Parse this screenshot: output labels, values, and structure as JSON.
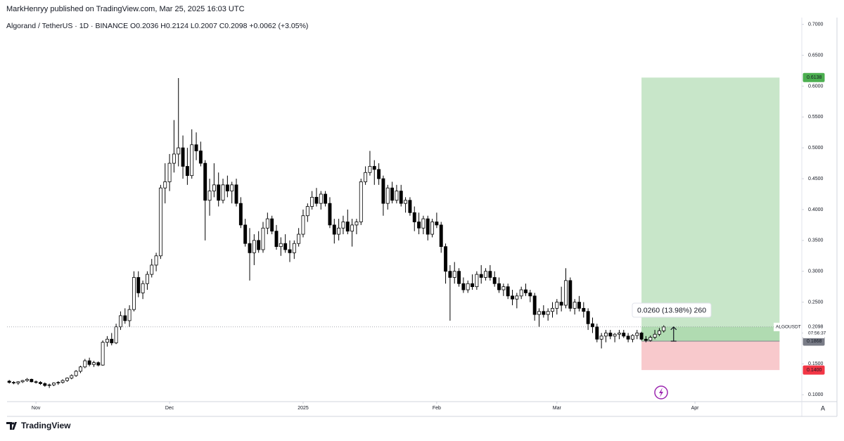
{
  "header": {
    "byline": "MarkHenryy published on TradingView.com, Mar 25, 2025 16:03 UTC"
  },
  "footer": {
    "brand": "TradingView",
    "axis_mode": "A"
  },
  "chart_data": {
    "type": "candlestick",
    "title": "Algorand / TetherUS · 1D · BINANCE  O0.2036  H0.2124  L0.2007  C0.2098  +0.0062 (+3.05%)",
    "symbol": "ALGOUSDT",
    "countdown": "07:56:37",
    "up_color": "#ffffff",
    "down_color": "#000000",
    "wick_color": "#000000",
    "xlim": [
      -0.5,
      178
    ],
    "xticks": [
      {
        "value": 6,
        "label": "Nov"
      },
      {
        "value": 36,
        "label": "Dec"
      },
      {
        "value": 66,
        "label": "2025"
      },
      {
        "value": 96,
        "label": "Feb"
      },
      {
        "value": 123,
        "label": "Mar"
      },
      {
        "value": 154,
        "label": "Apr"
      }
    ],
    "ylim": [
      0.09,
      0.711
    ],
    "yticks": [
      {
        "value": 0.1,
        "label": "0.1000"
      },
      {
        "value": 0.15,
        "label": "0.1500"
      },
      {
        "value": 0.2,
        "label": "0.2000"
      },
      {
        "value": 0.25,
        "label": "0.2500"
      },
      {
        "value": 0.3,
        "label": "0.3000"
      },
      {
        "value": 0.35,
        "label": "0.3500"
      },
      {
        "value": 0.4,
        "label": "0.4000"
      },
      {
        "value": 0.45,
        "label": "0.4500"
      },
      {
        "value": 0.5,
        "label": "0.5000"
      },
      {
        "value": 0.55,
        "label": "0.5500"
      },
      {
        "value": 0.6,
        "label": "0.6000"
      },
      {
        "value": 0.65,
        "label": "0.6500"
      },
      {
        "value": 0.7,
        "label": "0.7000"
      }
    ],
    "ohlc": [
      [
        0.122,
        0.124,
        0.118,
        0.12
      ],
      [
        0.12,
        0.122,
        0.117,
        0.119
      ],
      [
        0.119,
        0.122,
        0.116,
        0.121
      ],
      [
        0.121,
        0.124,
        0.119,
        0.123
      ],
      [
        0.123,
        0.127,
        0.121,
        0.125
      ],
      [
        0.125,
        0.126,
        0.12,
        0.121
      ],
      [
        0.121,
        0.123,
        0.118,
        0.12
      ],
      [
        0.12,
        0.122,
        0.116,
        0.118
      ],
      [
        0.118,
        0.12,
        0.113,
        0.115
      ],
      [
        0.115,
        0.118,
        0.111,
        0.116
      ],
      [
        0.116,
        0.12,
        0.114,
        0.119
      ],
      [
        0.119,
        0.122,
        0.116,
        0.12
      ],
      [
        0.12,
        0.125,
        0.118,
        0.123
      ],
      [
        0.123,
        0.128,
        0.121,
        0.127
      ],
      [
        0.127,
        0.133,
        0.125,
        0.131
      ],
      [
        0.131,
        0.14,
        0.129,
        0.138
      ],
      [
        0.138,
        0.147,
        0.135,
        0.145
      ],
      [
        0.145,
        0.158,
        0.143,
        0.155
      ],
      [
        0.155,
        0.16,
        0.146,
        0.149
      ],
      [
        0.149,
        0.155,
        0.145,
        0.152
      ],
      [
        0.152,
        0.154,
        0.146,
        0.148
      ],
      [
        0.148,
        0.188,
        0.147,
        0.185
      ],
      [
        0.185,
        0.195,
        0.178,
        0.19
      ],
      [
        0.19,
        0.2,
        0.18,
        0.184
      ],
      [
        0.184,
        0.215,
        0.182,
        0.21
      ],
      [
        0.21,
        0.235,
        0.205,
        0.228
      ],
      [
        0.228,
        0.24,
        0.215,
        0.22
      ],
      [
        0.22,
        0.245,
        0.21,
        0.238
      ],
      [
        0.238,
        0.3,
        0.235,
        0.29
      ],
      [
        0.29,
        0.3,
        0.258,
        0.265
      ],
      [
        0.265,
        0.285,
        0.255,
        0.28
      ],
      [
        0.28,
        0.3,
        0.27,
        0.295
      ],
      [
        0.295,
        0.32,
        0.29,
        0.31
      ],
      [
        0.31,
        0.33,
        0.3,
        0.325
      ],
      [
        0.325,
        0.44,
        0.32,
        0.435
      ],
      [
        0.435,
        0.475,
        0.41,
        0.445
      ],
      [
        0.445,
        0.49,
        0.43,
        0.475
      ],
      [
        0.475,
        0.545,
        0.46,
        0.49
      ],
      [
        0.49,
        0.613,
        0.47,
        0.5
      ],
      [
        0.5,
        0.52,
        0.45,
        0.47
      ],
      [
        0.47,
        0.5,
        0.44,
        0.455
      ],
      [
        0.455,
        0.53,
        0.45,
        0.505
      ],
      [
        0.505,
        0.525,
        0.48,
        0.495
      ],
      [
        0.495,
        0.51,
        0.47,
        0.475
      ],
      [
        0.475,
        0.48,
        0.35,
        0.415
      ],
      [
        0.415,
        0.45,
        0.39,
        0.43
      ],
      [
        0.43,
        0.475,
        0.42,
        0.44
      ],
      [
        0.44,
        0.46,
        0.405,
        0.415
      ],
      [
        0.415,
        0.45,
        0.41,
        0.44
      ],
      [
        0.44,
        0.455,
        0.42,
        0.43
      ],
      [
        0.43,
        0.445,
        0.41,
        0.44
      ],
      [
        0.44,
        0.45,
        0.405,
        0.41
      ],
      [
        0.41,
        0.42,
        0.37,
        0.375
      ],
      [
        0.375,
        0.385,
        0.34,
        0.345
      ],
      [
        0.345,
        0.37,
        0.285,
        0.33
      ],
      [
        0.33,
        0.36,
        0.31,
        0.35
      ],
      [
        0.35,
        0.365,
        0.33,
        0.335
      ],
      [
        0.335,
        0.38,
        0.33,
        0.37
      ],
      [
        0.37,
        0.395,
        0.36,
        0.385
      ],
      [
        0.385,
        0.39,
        0.36,
        0.365
      ],
      [
        0.365,
        0.375,
        0.335,
        0.34
      ],
      [
        0.34,
        0.355,
        0.325,
        0.345
      ],
      [
        0.345,
        0.36,
        0.33,
        0.335
      ],
      [
        0.335,
        0.35,
        0.315,
        0.33
      ],
      [
        0.33,
        0.35,
        0.32,
        0.345
      ],
      [
        0.345,
        0.37,
        0.34,
        0.36
      ],
      [
        0.36,
        0.4,
        0.355,
        0.39
      ],
      [
        0.39,
        0.41,
        0.38,
        0.405
      ],
      [
        0.405,
        0.43,
        0.4,
        0.42
      ],
      [
        0.42,
        0.435,
        0.405,
        0.41
      ],
      [
        0.41,
        0.43,
        0.4,
        0.425
      ],
      [
        0.425,
        0.43,
        0.405,
        0.41
      ],
      [
        0.41,
        0.42,
        0.37,
        0.375
      ],
      [
        0.375,
        0.385,
        0.345,
        0.36
      ],
      [
        0.36,
        0.385,
        0.35,
        0.37
      ],
      [
        0.37,
        0.39,
        0.36,
        0.38
      ],
      [
        0.38,
        0.4,
        0.36,
        0.365
      ],
      [
        0.365,
        0.385,
        0.34,
        0.375
      ],
      [
        0.375,
        0.385,
        0.36,
        0.38
      ],
      [
        0.38,
        0.45,
        0.375,
        0.445
      ],
      [
        0.445,
        0.47,
        0.44,
        0.46
      ],
      [
        0.46,
        0.495,
        0.455,
        0.47
      ],
      [
        0.47,
        0.48,
        0.44,
        0.465
      ],
      [
        0.465,
        0.475,
        0.44,
        0.45
      ],
      [
        0.45,
        0.455,
        0.39,
        0.41
      ],
      [
        0.41,
        0.44,
        0.4,
        0.435
      ],
      [
        0.435,
        0.445,
        0.41,
        0.415
      ],
      [
        0.415,
        0.44,
        0.41,
        0.43
      ],
      [
        0.43,
        0.44,
        0.405,
        0.41
      ],
      [
        0.41,
        0.42,
        0.395,
        0.415
      ],
      [
        0.415,
        0.42,
        0.39,
        0.395
      ],
      [
        0.395,
        0.405,
        0.365,
        0.38
      ],
      [
        0.38,
        0.395,
        0.36,
        0.37
      ],
      [
        0.37,
        0.39,
        0.36,
        0.385
      ],
      [
        0.385,
        0.39,
        0.35,
        0.36
      ],
      [
        0.36,
        0.385,
        0.355,
        0.38
      ],
      [
        0.38,
        0.395,
        0.37,
        0.375
      ],
      [
        0.375,
        0.38,
        0.33,
        0.34
      ],
      [
        0.34,
        0.345,
        0.28,
        0.3
      ],
      [
        0.3,
        0.31,
        0.22,
        0.29
      ],
      [
        0.29,
        0.315,
        0.28,
        0.3
      ],
      [
        0.3,
        0.305,
        0.275,
        0.28
      ],
      [
        0.28,
        0.29,
        0.265,
        0.27
      ],
      [
        0.27,
        0.285,
        0.265,
        0.28
      ],
      [
        0.28,
        0.295,
        0.27,
        0.275
      ],
      [
        0.275,
        0.3,
        0.27,
        0.295
      ],
      [
        0.295,
        0.31,
        0.28,
        0.29
      ],
      [
        0.29,
        0.305,
        0.285,
        0.3
      ],
      [
        0.3,
        0.31,
        0.285,
        0.29
      ],
      [
        0.29,
        0.3,
        0.275,
        0.28
      ],
      [
        0.28,
        0.29,
        0.265,
        0.27
      ],
      [
        0.27,
        0.28,
        0.26,
        0.275
      ],
      [
        0.275,
        0.28,
        0.255,
        0.26
      ],
      [
        0.26,
        0.27,
        0.245,
        0.255
      ],
      [
        0.255,
        0.265,
        0.24,
        0.26
      ],
      [
        0.26,
        0.275,
        0.255,
        0.27
      ],
      [
        0.27,
        0.28,
        0.26,
        0.265
      ],
      [
        0.265,
        0.27,
        0.25,
        0.26
      ],
      [
        0.26,
        0.265,
        0.22,
        0.23
      ],
      [
        0.23,
        0.24,
        0.21,
        0.235
      ],
      [
        0.235,
        0.245,
        0.225,
        0.23
      ],
      [
        0.23,
        0.24,
        0.22,
        0.235
      ],
      [
        0.235,
        0.25,
        0.225,
        0.24
      ],
      [
        0.24,
        0.255,
        0.23,
        0.25
      ],
      [
        0.25,
        0.275,
        0.235,
        0.245
      ],
      [
        0.245,
        0.305,
        0.24,
        0.285
      ],
      [
        0.285,
        0.29,
        0.235,
        0.24
      ],
      [
        0.24,
        0.255,
        0.23,
        0.25
      ],
      [
        0.25,
        0.26,
        0.235,
        0.24
      ],
      [
        0.24,
        0.25,
        0.225,
        0.235
      ],
      [
        0.235,
        0.24,
        0.205,
        0.215
      ],
      [
        0.215,
        0.225,
        0.2,
        0.21
      ],
      [
        0.21,
        0.215,
        0.185,
        0.19
      ],
      [
        0.19,
        0.2,
        0.175,
        0.195
      ],
      [
        0.195,
        0.205,
        0.185,
        0.2
      ],
      [
        0.2,
        0.205,
        0.19,
        0.195
      ],
      [
        0.195,
        0.2,
        0.185,
        0.198
      ],
      [
        0.198,
        0.205,
        0.19,
        0.2
      ],
      [
        0.2,
        0.205,
        0.192,
        0.195
      ],
      [
        0.195,
        0.2,
        0.185,
        0.19
      ],
      [
        0.19,
        0.198,
        0.185,
        0.196
      ],
      [
        0.196,
        0.205,
        0.19,
        0.2
      ],
      [
        0.2,
        0.202,
        0.188,
        0.19
      ],
      [
        0.19,
        0.195,
        0.185,
        0.188
      ],
      [
        0.188,
        0.196,
        0.186,
        0.193
      ],
      [
        0.193,
        0.205,
        0.19,
        0.198
      ],
      [
        0.198,
        0.208,
        0.195,
        0.2036
      ],
      [
        0.2036,
        0.2124,
        0.2007,
        0.2098
      ]
    ],
    "position": {
      "start": 142,
      "end": 173,
      "target": {
        "value": 0.6138,
        "label": "0.6138"
      },
      "entry": {
        "value": 0.1868,
        "label": "0.1868"
      },
      "stop": {
        "value": 0.14,
        "label": "0.1400"
      },
      "profit_color": "#c8e6c9",
      "loss_color": "#f8c9cc"
    },
    "last_price": {
      "value": 0.2098,
      "label": "0.2098"
    },
    "measure": {
      "label": "0.0260 (13.98%) 260"
    }
  }
}
